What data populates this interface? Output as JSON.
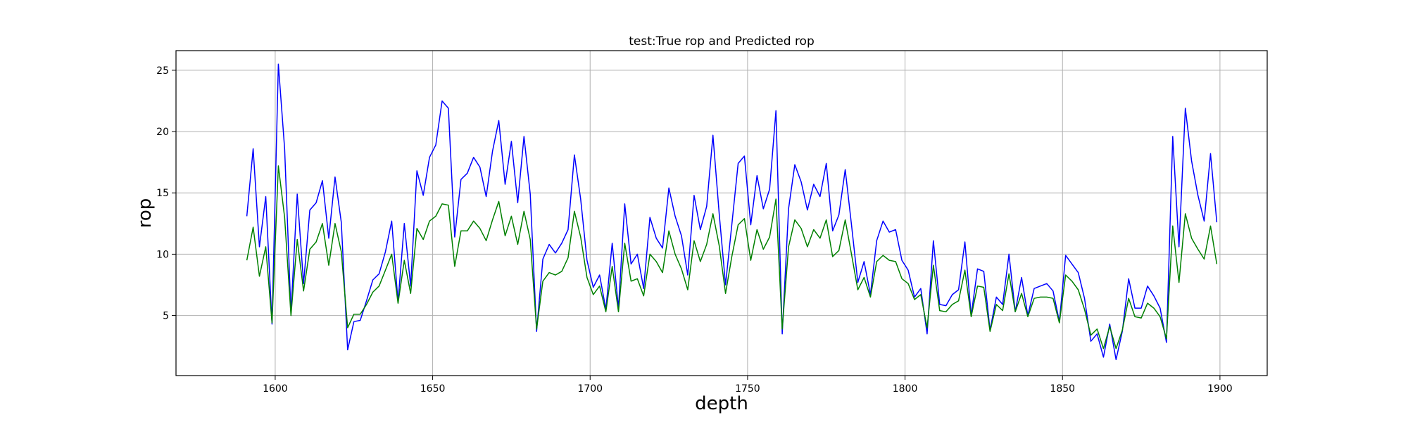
{
  "chart_data": {
    "type": "line",
    "title": "test:True rop and Predicted rop",
    "xlabel": "depth",
    "ylabel": "rop",
    "xlim": [
      1568.5,
      1915
    ],
    "ylim": [
      0.1,
      26.6
    ],
    "xticks": [
      1600,
      1650,
      1700,
      1750,
      1800,
      1850,
      1900
    ],
    "yticks": [
      5,
      10,
      15,
      20,
      25
    ],
    "grid": true,
    "legend": "none",
    "x_start": 1591,
    "x_step": 2,
    "series": [
      {
        "color": "#0000ff",
        "values": [
          13.1,
          18.6,
          10.6,
          14.7,
          4.3,
          25.5,
          18.6,
          5.2,
          14.9,
          7.6,
          13.6,
          14.2,
          16.0,
          11.3,
          16.3,
          12.6,
          2.2,
          4.5,
          4.6,
          6.2,
          7.9,
          8.4,
          10.2,
          12.7,
          6.1,
          12.5,
          7.4,
          16.8,
          14.8,
          17.9,
          18.9,
          22.5,
          21.9,
          11.4,
          16.1,
          16.6,
          17.9,
          17.1,
          14.7,
          18.4,
          20.9,
          15.7,
          19.2,
          14.2,
          19.6,
          14.9,
          3.7,
          9.6,
          10.8,
          10.1,
          10.9,
          12.0,
          18.1,
          14.5,
          9.5,
          7.3,
          8.3,
          5.5,
          10.9,
          5.6,
          14.1,
          9.2,
          10.0,
          7.2,
          13.0,
          11.3,
          10.5,
          15.4,
          13.1,
          11.5,
          8.3,
          14.8,
          12.0,
          13.9,
          19.7,
          13.3,
          7.5,
          12.4,
          17.4,
          18.0,
          12.4,
          16.4,
          13.7,
          15.3,
          21.7,
          3.5,
          13.7,
          17.3,
          15.9,
          13.6,
          15.7,
          14.7,
          17.4,
          11.9,
          13.2,
          16.9,
          12.4,
          7.7,
          9.4,
          6.7,
          11.1,
          12.7,
          11.8,
          12.0,
          9.5,
          8.7,
          6.5,
          7.2,
          3.5,
          11.1,
          5.9,
          5.8,
          6.7,
          7.1,
          11.0,
          5.0,
          8.8,
          8.6,
          3.8,
          6.5,
          5.9,
          10.0,
          5.3,
          8.1,
          5.0,
          7.2,
          7.4,
          7.6,
          7.0,
          4.5,
          9.9,
          9.2,
          8.5,
          6.4,
          2.9,
          3.5,
          1.6,
          4.3,
          1.4,
          3.7,
          8.0,
          5.6,
          5.6,
          7.4,
          6.6,
          5.6,
          2.8,
          19.6,
          10.6,
          21.9,
          17.6,
          14.8,
          12.7,
          18.2,
          12.6
        ]
      },
      {
        "color": "#008000",
        "values": [
          9.5,
          12.2,
          8.2,
          10.6,
          4.4,
          17.2,
          13.0,
          5.0,
          11.2,
          7.0,
          10.4,
          11.0,
          12.5,
          9.1,
          12.5,
          10.2,
          4.0,
          5.1,
          5.1,
          5.9,
          6.9,
          7.4,
          8.7,
          10.0,
          6.0,
          9.5,
          6.8,
          12.1,
          11.2,
          12.7,
          13.1,
          14.1,
          14.0,
          9.0,
          11.9,
          11.9,
          12.7,
          12.1,
          11.1,
          12.8,
          14.3,
          11.5,
          13.1,
          10.8,
          13.5,
          11.2,
          3.9,
          7.8,
          8.5,
          8.3,
          8.6,
          9.7,
          13.5,
          11.4,
          8.1,
          6.7,
          7.4,
          5.3,
          9.0,
          5.3,
          10.9,
          7.8,
          8.0,
          6.6,
          10.0,
          9.4,
          8.5,
          11.9,
          10.0,
          8.8,
          7.1,
          11.1,
          9.4,
          10.8,
          13.3,
          10.7,
          6.8,
          9.8,
          12.4,
          12.9,
          9.5,
          12.0,
          10.4,
          11.4,
          14.5,
          3.9,
          10.6,
          12.8,
          12.1,
          10.6,
          12.0,
          11.3,
          12.8,
          9.8,
          10.3,
          12.8,
          10.0,
          7.1,
          8.1,
          6.5,
          9.4,
          9.9,
          9.5,
          9.4,
          8.0,
          7.6,
          6.3,
          6.7,
          4.0,
          9.1,
          5.4,
          5.3,
          5.9,
          6.2,
          8.7,
          4.9,
          7.4,
          7.3,
          3.7,
          5.9,
          5.4,
          8.4,
          5.3,
          6.8,
          4.9,
          6.4,
          6.5,
          6.5,
          6.4,
          4.4,
          8.3,
          7.8,
          7.1,
          5.5,
          3.4,
          3.9,
          2.3,
          4.1,
          2.3,
          3.8,
          6.4,
          4.9,
          4.8,
          6.0,
          5.6,
          4.9,
          3.1,
          12.3,
          7.7,
          13.3,
          11.3,
          10.4,
          9.6,
          12.3,
          9.2
        ]
      }
    ]
  }
}
